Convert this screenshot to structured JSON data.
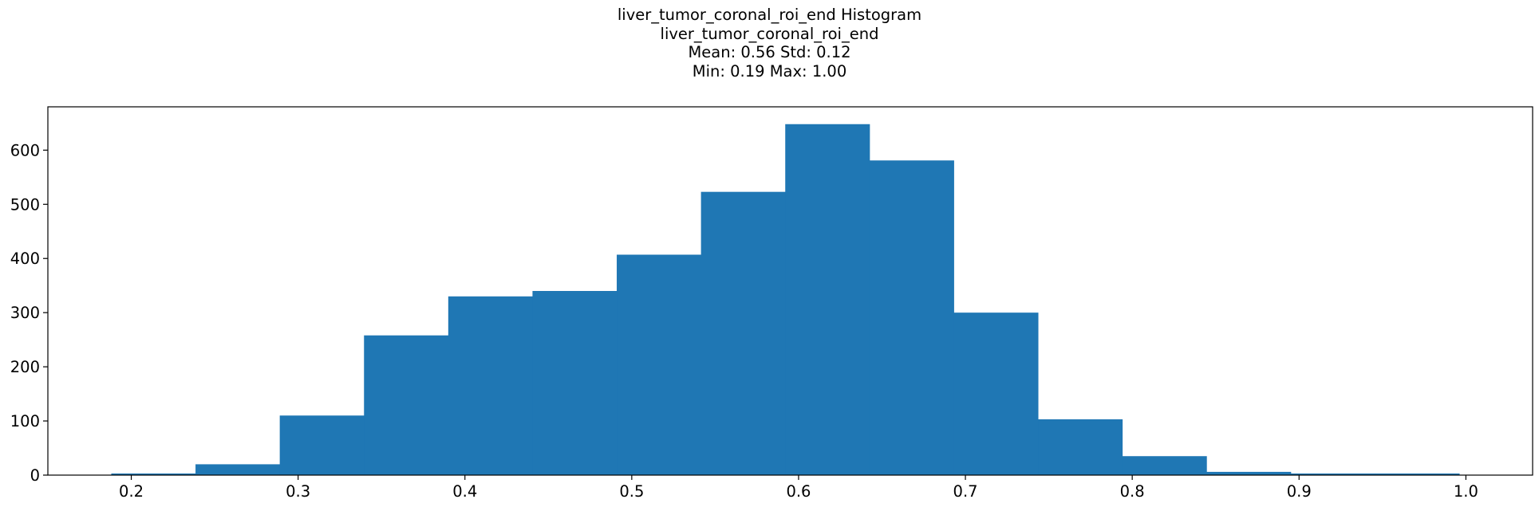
{
  "chart_data": {
    "type": "bar",
    "title_lines": [
      "liver_tumor_coronal_roi_end Histogram",
      "liver_tumor_coronal_roi_end",
      "Mean: 0.56 Std: 0.12",
      "Min: 0.19 Max: 1.00"
    ],
    "xlabel": "",
    "ylabel": "",
    "xlim": [
      0.15,
      1.04
    ],
    "ylim": [
      0,
      680
    ],
    "x_ticks": [
      0.2,
      0.3,
      0.4,
      0.5,
      0.6,
      0.7,
      0.8,
      0.9,
      1.0
    ],
    "x_tick_labels": [
      "0.2",
      "0.3",
      "0.4",
      "0.5",
      "0.6",
      "0.7",
      "0.8",
      "0.9",
      "1.0"
    ],
    "y_ticks": [
      0,
      100,
      200,
      300,
      400,
      500,
      600
    ],
    "y_tick_labels": [
      "0",
      "100",
      "200",
      "300",
      "400",
      "500",
      "600"
    ],
    "bar_color": "#1f77b4",
    "bin_edges": [
      0.188,
      0.2385,
      0.289,
      0.3395,
      0.39,
      0.4405,
      0.491,
      0.5415,
      0.592,
      0.6425,
      0.693,
      0.7435,
      0.794,
      0.8445,
      0.895,
      0.9455,
      0.996
    ],
    "counts": [
      3,
      20,
      110,
      258,
      330,
      340,
      407,
      523,
      648,
      581,
      300,
      103,
      35,
      6,
      3,
      3
    ],
    "grid": false
  }
}
